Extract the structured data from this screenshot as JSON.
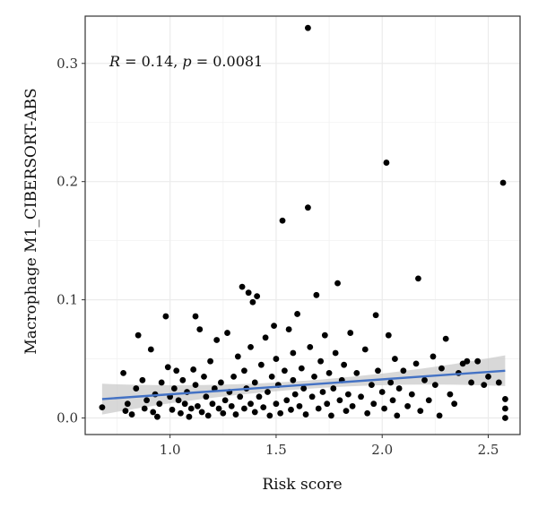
{
  "chart_data": {
    "type": "scatter",
    "xlabel": "Risk score",
    "ylabel": "Macrophage M1_CIBERSORT-ABS",
    "xlim": [
      0.6,
      2.65
    ],
    "ylim": [
      -0.014,
      0.34
    ],
    "x_ticks": [
      "1.0",
      "1.5",
      "2.0",
      "2.5"
    ],
    "y_ticks": [
      "0.0",
      "0.1",
      "0.2",
      "0.3"
    ],
    "grid": true,
    "annotation": {
      "r_label": "R",
      "r_value": " = 0.14, ",
      "p_label": "p",
      "p_value": " = 0.0081"
    },
    "colors": {
      "points": "#000000",
      "fit_line": "#4472c4",
      "confidence_band": "#c8c8c8",
      "panel_background": "#ffffff",
      "grid": "#ebebeb"
    },
    "fit": {
      "x": [
        0.68,
        2.58
      ],
      "y": [
        0.016,
        0.04
      ]
    },
    "points": [
      [
        0.68,
        0.009
      ],
      [
        0.78,
        0.038
      ],
      [
        0.79,
        0.006
      ],
      [
        0.8,
        0.012
      ],
      [
        0.82,
        0.003
      ],
      [
        0.84,
        0.025
      ],
      [
        0.85,
        0.07
      ],
      [
        0.87,
        0.032
      ],
      [
        0.88,
        0.008
      ],
      [
        0.89,
        0.015
      ],
      [
        0.91,
        0.058
      ],
      [
        0.92,
        0.005
      ],
      [
        0.93,
        0.02
      ],
      [
        0.94,
        0.001
      ],
      [
        0.95,
        0.012
      ],
      [
        0.96,
        0.03
      ],
      [
        0.98,
        0.086
      ],
      [
        0.99,
        0.043
      ],
      [
        1.0,
        0.018
      ],
      [
        1.01,
        0.007
      ],
      [
        1.02,
        0.025
      ],
      [
        1.03,
        0.04
      ],
      [
        1.04,
        0.015
      ],
      [
        1.05,
        0.004
      ],
      [
        1.06,
        0.032
      ],
      [
        1.07,
        0.012
      ],
      [
        1.08,
        0.022
      ],
      [
        1.09,
        0.001
      ],
      [
        1.1,
        0.008
      ],
      [
        1.11,
        0.041
      ],
      [
        1.12,
        0.028
      ],
      [
        1.12,
        0.086
      ],
      [
        1.13,
        0.01
      ],
      [
        1.14,
        0.075
      ],
      [
        1.15,
        0.005
      ],
      [
        1.16,
        0.035
      ],
      [
        1.17,
        0.018
      ],
      [
        1.18,
        0.002
      ],
      [
        1.19,
        0.048
      ],
      [
        1.2,
        0.012
      ],
      [
        1.21,
        0.025
      ],
      [
        1.22,
        0.066
      ],
      [
        1.23,
        0.008
      ],
      [
        1.24,
        0.03
      ],
      [
        1.25,
        0.004
      ],
      [
        1.26,
        0.015
      ],
      [
        1.27,
        0.072
      ],
      [
        1.28,
        0.022
      ],
      [
        1.29,
        0.01
      ],
      [
        1.3,
        0.035
      ],
      [
        1.31,
        0.003
      ],
      [
        1.32,
        0.052
      ],
      [
        1.33,
        0.018
      ],
      [
        1.34,
        0.111
      ],
      [
        1.35,
        0.008
      ],
      [
        1.35,
        0.04
      ],
      [
        1.36,
        0.025
      ],
      [
        1.37,
        0.106
      ],
      [
        1.38,
        0.012
      ],
      [
        1.38,
        0.06
      ],
      [
        1.39,
        0.098
      ],
      [
        1.4,
        0.005
      ],
      [
        1.4,
        0.03
      ],
      [
        1.41,
        0.103
      ],
      [
        1.42,
        0.018
      ],
      [
        1.43,
        0.045
      ],
      [
        1.44,
        0.009
      ],
      [
        1.45,
        0.068
      ],
      [
        1.46,
        0.022
      ],
      [
        1.47,
        0.002
      ],
      [
        1.48,
        0.035
      ],
      [
        1.49,
        0.078
      ],
      [
        1.5,
        0.012
      ],
      [
        1.5,
        0.05
      ],
      [
        1.51,
        0.028
      ],
      [
        1.52,
        0.004
      ],
      [
        1.53,
        0.167
      ],
      [
        1.54,
        0.04
      ],
      [
        1.55,
        0.015
      ],
      [
        1.56,
        0.075
      ],
      [
        1.57,
        0.007
      ],
      [
        1.58,
        0.032
      ],
      [
        1.58,
        0.055
      ],
      [
        1.59,
        0.02
      ],
      [
        1.6,
        0.088
      ],
      [
        1.61,
        0.01
      ],
      [
        1.62,
        0.042
      ],
      [
        1.63,
        0.025
      ],
      [
        1.64,
        0.003
      ],
      [
        1.65,
        0.178
      ],
      [
        1.65,
        0.33
      ],
      [
        1.66,
        0.06
      ],
      [
        1.67,
        0.018
      ],
      [
        1.68,
        0.035
      ],
      [
        1.69,
        0.104
      ],
      [
        1.7,
        0.008
      ],
      [
        1.71,
        0.048
      ],
      [
        1.72,
        0.022
      ],
      [
        1.73,
        0.07
      ],
      [
        1.74,
        0.012
      ],
      [
        1.75,
        0.038
      ],
      [
        1.76,
        0.002
      ],
      [
        1.77,
        0.025
      ],
      [
        1.78,
        0.055
      ],
      [
        1.79,
        0.114
      ],
      [
        1.8,
        0.015
      ],
      [
        1.81,
        0.032
      ],
      [
        1.82,
        0.045
      ],
      [
        1.83,
        0.006
      ],
      [
        1.84,
        0.02
      ],
      [
        1.85,
        0.072
      ],
      [
        1.86,
        0.01
      ],
      [
        1.88,
        0.038
      ],
      [
        1.9,
        0.018
      ],
      [
        1.92,
        0.058
      ],
      [
        1.93,
        0.004
      ],
      [
        1.95,
        0.028
      ],
      [
        1.96,
        0.012
      ],
      [
        1.97,
        0.087
      ],
      [
        1.98,
        0.04
      ],
      [
        2.0,
        0.022
      ],
      [
        2.01,
        0.008
      ],
      [
        2.02,
        0.216
      ],
      [
        2.03,
        0.07
      ],
      [
        2.04,
        0.03
      ],
      [
        2.05,
        0.015
      ],
      [
        2.06,
        0.05
      ],
      [
        2.07,
        0.002
      ],
      [
        2.08,
        0.025
      ],
      [
        2.1,
        0.04
      ],
      [
        2.12,
        0.01
      ],
      [
        2.14,
        0.02
      ],
      [
        2.16,
        0.046
      ],
      [
        2.17,
        0.118
      ],
      [
        2.18,
        0.006
      ],
      [
        2.2,
        0.032
      ],
      [
        2.22,
        0.015
      ],
      [
        2.24,
        0.052
      ],
      [
        2.25,
        0.028
      ],
      [
        2.27,
        0.002
      ],
      [
        2.28,
        0.042
      ],
      [
        2.3,
        0.067
      ],
      [
        2.32,
        0.02
      ],
      [
        2.34,
        0.012
      ],
      [
        2.36,
        0.038
      ],
      [
        2.38,
        0.046
      ],
      [
        2.4,
        0.048
      ],
      [
        2.42,
        0.03
      ],
      [
        2.45,
        0.048
      ],
      [
        2.48,
        0.028
      ],
      [
        2.5,
        0.035
      ],
      [
        2.55,
        0.03
      ],
      [
        2.57,
        0.199
      ],
      [
        2.58,
        0.016
      ],
      [
        2.58,
        0.008
      ],
      [
        2.58,
        0.0
      ]
    ]
  }
}
